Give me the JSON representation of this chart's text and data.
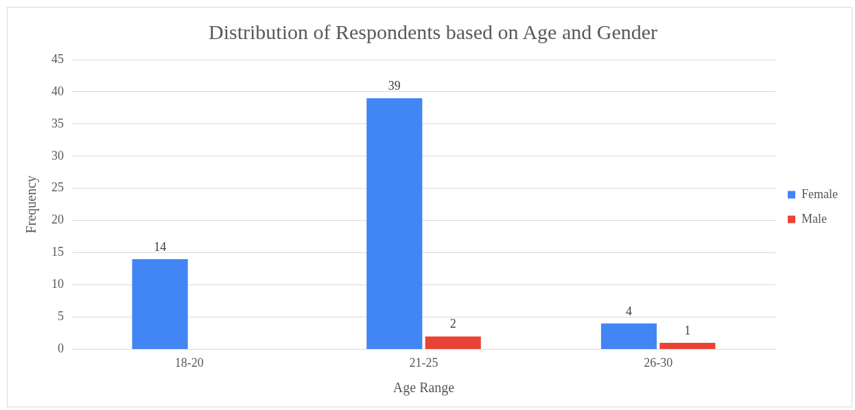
{
  "chart_data": {
    "type": "bar",
    "title": "Distribution of Respondents based on Age and Gender",
    "xlabel": "Age Range",
    "ylabel": "Frequency",
    "categories": [
      "18-20",
      "21-25",
      "26-30"
    ],
    "series": [
      {
        "name": "Female",
        "color": "#4285f4",
        "values": [
          14,
          39,
          4
        ]
      },
      {
        "name": "Male",
        "color": "#ea4335",
        "values": [
          null,
          2,
          1
        ]
      }
    ],
    "ylim": [
      0,
      45
    ],
    "yticks": [
      0,
      5,
      10,
      15,
      20,
      25,
      30,
      35,
      40,
      45
    ],
    "grid": "y",
    "legend": "right",
    "data_labels": true
  }
}
